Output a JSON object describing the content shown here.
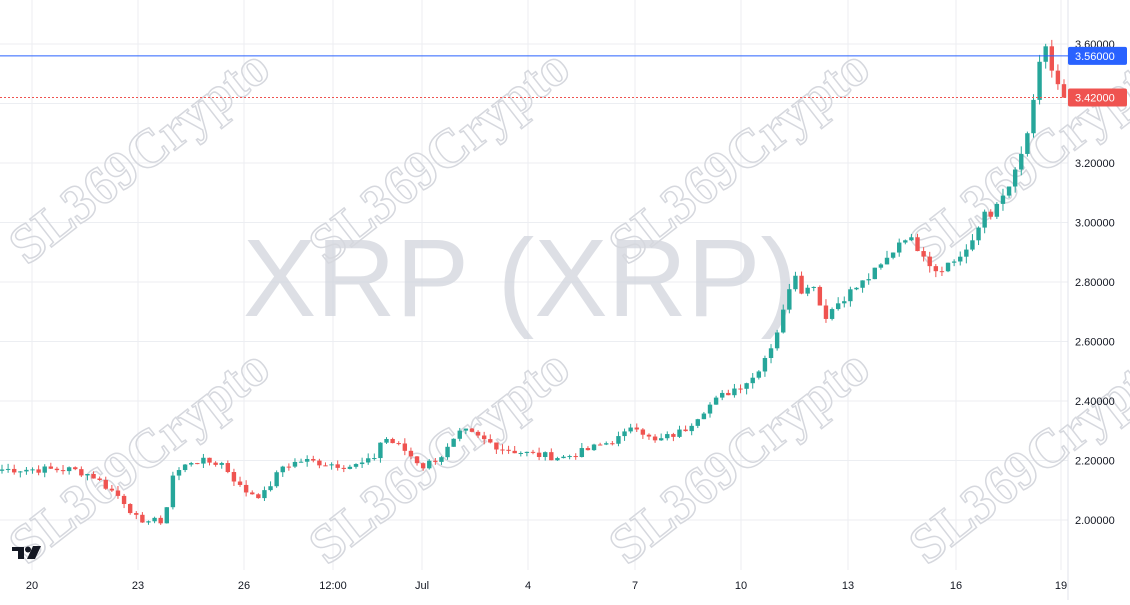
{
  "watermark": {
    "title": "XRP (XRP)",
    "brand": "SL369Crypto"
  },
  "logo": {
    "icon": "tradingview-logo-icon"
  },
  "colors": {
    "up": "#26a69a",
    "down": "#ef5350",
    "grid": "#eceef2",
    "current_line": "#ef5350",
    "level_line": "#2962ff"
  },
  "chart_data": {
    "type": "candlestick",
    "title": "XRP (XRP)",
    "x_tick_labels": [
      "20",
      "23",
      "26",
      "12:00",
      "Jul",
      "4",
      "7",
      "10",
      "13",
      "16",
      "19"
    ],
    "y_tick_labels": [
      "2.00000",
      "2.20000",
      "2.40000",
      "2.60000",
      "2.80000",
      "3.00000",
      "3.20000",
      "3.60000"
    ],
    "ylim": [
      1.81,
      3.71
    ],
    "grid": true,
    "level_marker": {
      "value": 3.56,
      "label": "3.56000"
    },
    "current_price": {
      "value": 3.42,
      "label": "3.42000"
    },
    "keypoints": [
      [
        0,
        2.17
      ],
      [
        7,
        2.17
      ],
      [
        9,
        2.15
      ],
      [
        12,
        2.07
      ],
      [
        14,
        1.98
      ],
      [
        15,
        2.02
      ],
      [
        16,
        1.97
      ],
      [
        17,
        2.15
      ],
      [
        19,
        2.2
      ],
      [
        22,
        2.19
      ],
      [
        24,
        2.1
      ],
      [
        26,
        2.08
      ],
      [
        28,
        2.18
      ],
      [
        30,
        2.2
      ],
      [
        35,
        2.18
      ],
      [
        37,
        2.2
      ],
      [
        38,
        2.28
      ],
      [
        40,
        2.24
      ],
      [
        42,
        2.18
      ],
      [
        44,
        2.22
      ],
      [
        46,
        2.3
      ],
      [
        48,
        2.27
      ],
      [
        50,
        2.24
      ],
      [
        53,
        2.22
      ],
      [
        56,
        2.21
      ],
      [
        58,
        2.23
      ],
      [
        62,
        2.28
      ],
      [
        63,
        2.33
      ],
      [
        65,
        2.26
      ],
      [
        68,
        2.3
      ],
      [
        70,
        2.37
      ],
      [
        72,
        2.42
      ],
      [
        75,
        2.48
      ],
      [
        77,
        2.6
      ],
      [
        78,
        2.7
      ],
      [
        79,
        2.85
      ],
      [
        80,
        2.76
      ],
      [
        81,
        2.8
      ],
      [
        82,
        2.68
      ],
      [
        84,
        2.75
      ],
      [
        86,
        2.8
      ],
      [
        88,
        2.86
      ],
      [
        90,
        2.96
      ],
      [
        92,
        2.9
      ],
      [
        93,
        2.84
      ],
      [
        95,
        2.87
      ],
      [
        97,
        2.93
      ],
      [
        98,
        3.04
      ],
      [
        99,
        3.03
      ],
      [
        101,
        3.15
      ],
      [
        102,
        3.25
      ],
      [
        103,
        3.4
      ],
      [
        104,
        3.62
      ],
      [
        105,
        3.48
      ],
      [
        106,
        3.42
      ]
    ]
  }
}
